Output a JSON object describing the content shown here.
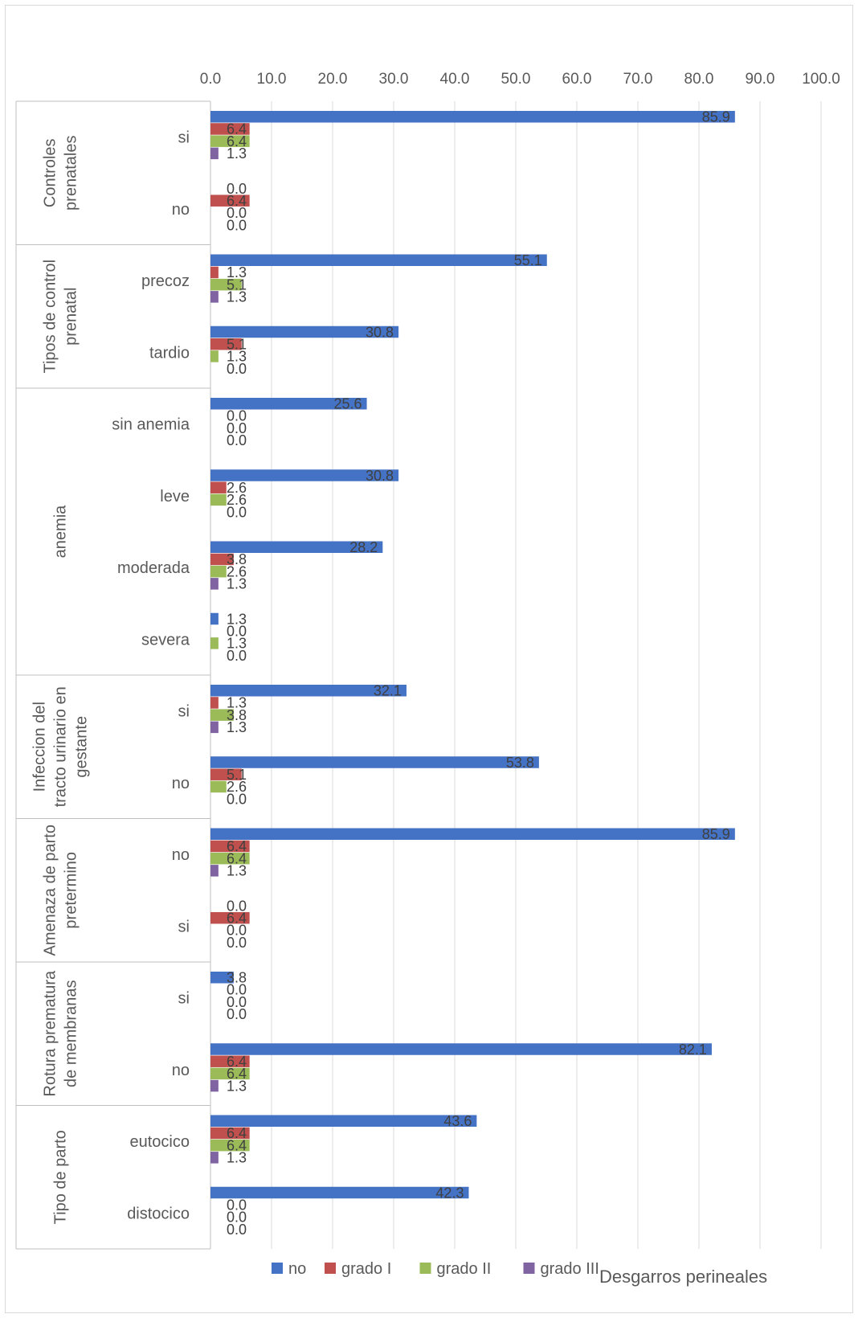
{
  "chart_data": {
    "type": "bar",
    "orientation": "horizontal",
    "title": "Desgarros perineales",
    "xlim": [
      0,
      100
    ],
    "x_ticks": [
      "0.0",
      "10.0",
      "20.0",
      "30.0",
      "40.0",
      "50.0",
      "60.0",
      "70.0",
      "80.0",
      "90.0",
      "100.0"
    ],
    "grid": true,
    "legend_position": "bottom",
    "groups": [
      {
        "name": "Controles prenatales",
        "categories": [
          "si",
          "no"
        ]
      },
      {
        "name": "Tipos de control prenatal",
        "categories": [
          "precoz",
          "tardio"
        ]
      },
      {
        "name": "anemia",
        "categories": [
          "sin anemia",
          "leve",
          "moderada",
          "severa"
        ]
      },
      {
        "name": "Infeccion del tracto urinario en gestante",
        "categories": [
          "si",
          "no"
        ]
      },
      {
        "name": "Amenaza de parto pretermino",
        "categories": [
          "no",
          "si"
        ]
      },
      {
        "name": "Rotura prematura de membranas",
        "categories": [
          "si",
          "no"
        ]
      },
      {
        "name": "Tipo de parto",
        "categories": [
          "eutocico",
          "distocico"
        ]
      }
    ],
    "series": [
      {
        "name": "no",
        "color": "#4472C4",
        "values": [
          85.9,
          0.0,
          55.1,
          30.8,
          25.6,
          30.8,
          28.2,
          1.3,
          32.1,
          53.8,
          85.9,
          0.0,
          3.8,
          82.1,
          43.6,
          42.3
        ]
      },
      {
        "name": "grado I",
        "color": "#C0504D",
        "values": [
          6.4,
          6.4,
          1.3,
          5.1,
          0.0,
          2.6,
          3.8,
          0.0,
          1.3,
          5.1,
          6.4,
          6.4,
          0.0,
          6.4,
          6.4,
          0.0
        ]
      },
      {
        "name": "grado II",
        "color": "#9BBB59",
        "values": [
          6.4,
          0.0,
          5.1,
          1.3,
          0.0,
          2.6,
          2.6,
          1.3,
          3.8,
          2.6,
          6.4,
          0.0,
          0.0,
          6.4,
          6.4,
          0.0
        ]
      },
      {
        "name": "grado III",
        "color": "#8064A2",
        "values": [
          1.3,
          0.0,
          1.3,
          0.0,
          0.0,
          0.0,
          1.3,
          0.0,
          1.3,
          0.0,
          1.3,
          0.0,
          0.0,
          1.3,
          1.3,
          0.0
        ]
      }
    ]
  }
}
